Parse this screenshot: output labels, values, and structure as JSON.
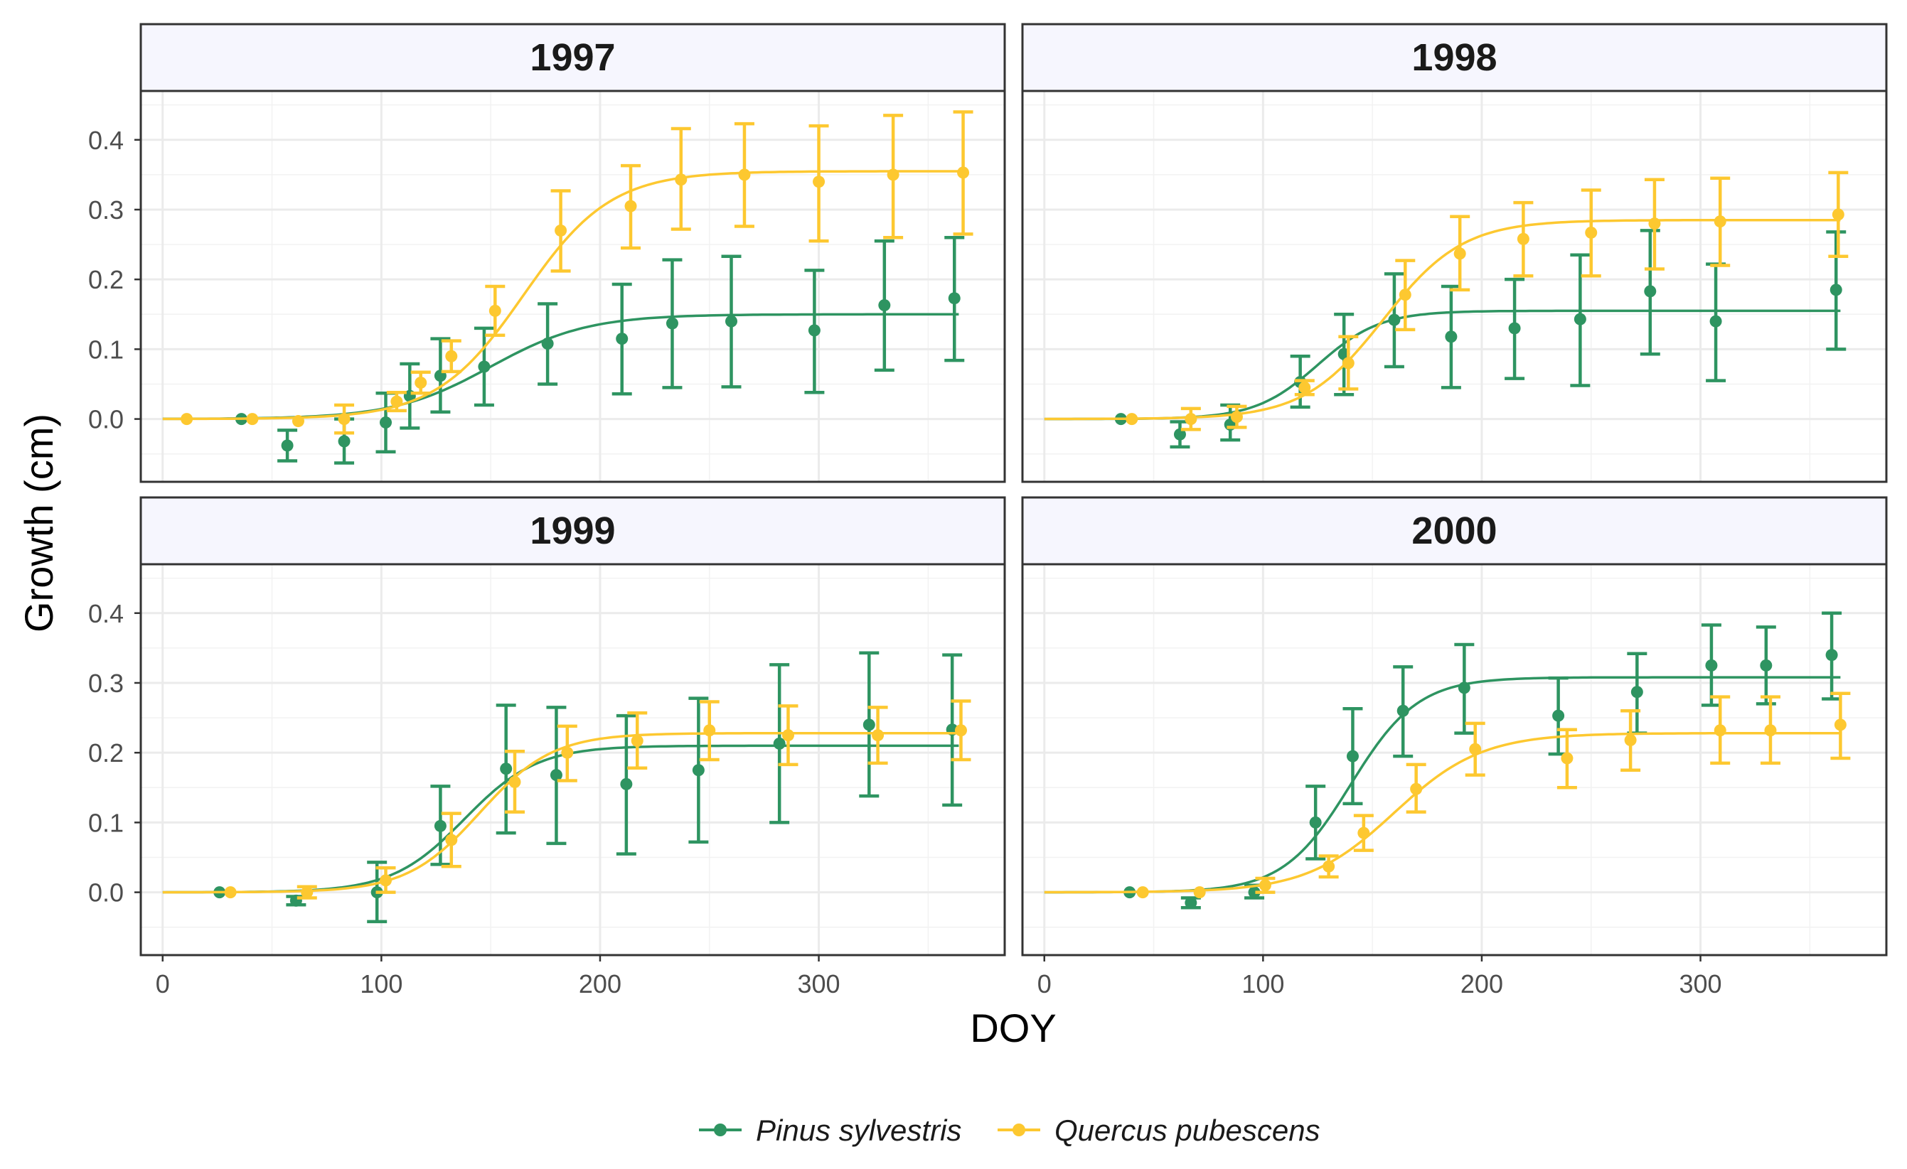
{
  "colors": {
    "pinus": "#2e9461",
    "quercus": "#fdc830"
  },
  "chart_data": {
    "type": "line",
    "xlabel": "DOY",
    "ylabel": "Growth (cm)",
    "xlim": [
      -10,
      385
    ],
    "ylim": [
      -0.09,
      0.47
    ],
    "x_ticks": [
      0,
      100,
      200,
      300
    ],
    "y_ticks": [
      0.0,
      0.1,
      0.2,
      0.3,
      0.4
    ],
    "x_tick_labels": [
      "0",
      "100",
      "200",
      "300"
    ],
    "y_tick_labels": [
      "0.0",
      "0.1",
      "0.2",
      "0.3",
      "0.4"
    ],
    "legend": {
      "position": "bottom",
      "entries": [
        {
          "key": "pinus",
          "label": "Pinus sylvestris"
        },
        {
          "key": "quercus",
          "label": "Quercus pubescens"
        }
      ]
    },
    "panels": [
      {
        "title": "1997",
        "series": [
          {
            "key": "pinus",
            "name": "Pinus sylvestris",
            "curve": {
              "asymptote": 0.15,
              "midpoint": 150,
              "rate": 0.045
            },
            "points": [
              {
                "x": 36,
                "y": 0.0,
                "lo": 0.0,
                "hi": 0.0
              },
              {
                "x": 57,
                "y": -0.038,
                "lo": -0.06,
                "hi": -0.016
              },
              {
                "x": 83,
                "y": -0.032,
                "lo": -0.063,
                "hi": 0.0
              },
              {
                "x": 102,
                "y": -0.005,
                "lo": -0.047,
                "hi": 0.037
              },
              {
                "x": 113,
                "y": 0.033,
                "lo": -0.013,
                "hi": 0.079
              },
              {
                "x": 127,
                "y": 0.062,
                "lo": 0.01,
                "hi": 0.115
              },
              {
                "x": 147,
                "y": 0.075,
                "lo": 0.02,
                "hi": 0.13
              },
              {
                "x": 176,
                "y": 0.108,
                "lo": 0.05,
                "hi": 0.165
              },
              {
                "x": 210,
                "y": 0.115,
                "lo": 0.036,
                "hi": 0.193
              },
              {
                "x": 233,
                "y": 0.137,
                "lo": 0.045,
                "hi": 0.228
              },
              {
                "x": 260,
                "y": 0.14,
                "lo": 0.046,
                "hi": 0.233
              },
              {
                "x": 298,
                "y": 0.127,
                "lo": 0.038,
                "hi": 0.213
              },
              {
                "x": 330,
                "y": 0.163,
                "lo": 0.07,
                "hi": 0.255
              },
              {
                "x": 362,
                "y": 0.173,
                "lo": 0.084,
                "hi": 0.26
              }
            ]
          },
          {
            "key": "quercus",
            "name": "Quercus pubescens",
            "curve": {
              "asymptote": 0.355,
              "midpoint": 165,
              "rate": 0.05
            },
            "points": [
              {
                "x": 11,
                "y": 0.0,
                "lo": 0.0,
                "hi": 0.0
              },
              {
                "x": 41,
                "y": 0.0,
                "lo": 0.0,
                "hi": 0.0
              },
              {
                "x": 62,
                "y": -0.003,
                "lo": -0.003,
                "hi": -0.003
              },
              {
                "x": 83,
                "y": 0.0,
                "lo": -0.02,
                "hi": 0.02
              },
              {
                "x": 107,
                "y": 0.025,
                "lo": 0.012,
                "hi": 0.038
              },
              {
                "x": 118,
                "y": 0.052,
                "lo": 0.037,
                "hi": 0.067
              },
              {
                "x": 132,
                "y": 0.09,
                "lo": 0.068,
                "hi": 0.112
              },
              {
                "x": 152,
                "y": 0.155,
                "lo": 0.12,
                "hi": 0.19
              },
              {
                "x": 182,
                "y": 0.27,
                "lo": 0.212,
                "hi": 0.327
              },
              {
                "x": 214,
                "y": 0.305,
                "lo": 0.245,
                "hi": 0.363
              },
              {
                "x": 237,
                "y": 0.343,
                "lo": 0.272,
                "hi": 0.416
              },
              {
                "x": 266,
                "y": 0.35,
                "lo": 0.276,
                "hi": 0.423
              },
              {
                "x": 300,
                "y": 0.34,
                "lo": 0.255,
                "hi": 0.42
              },
              {
                "x": 334,
                "y": 0.35,
                "lo": 0.26,
                "hi": 0.435
              },
              {
                "x": 366,
                "y": 0.353,
                "lo": 0.265,
                "hi": 0.44
              }
            ]
          }
        ]
      },
      {
        "title": "1998",
        "series": [
          {
            "key": "pinus",
            "name": "Pinus sylvestris",
            "curve": {
              "asymptote": 0.155,
              "midpoint": 125,
              "rate": 0.07
            },
            "points": [
              {
                "x": 35,
                "y": 0.0,
                "lo": 0.0,
                "hi": 0.0
              },
              {
                "x": 62,
                "y": -0.022,
                "lo": -0.04,
                "hi": -0.004
              },
              {
                "x": 85,
                "y": -0.008,
                "lo": -0.03,
                "hi": 0.02
              },
              {
                "x": 117,
                "y": 0.053,
                "lo": 0.017,
                "hi": 0.09
              },
              {
                "x": 137,
                "y": 0.093,
                "lo": 0.035,
                "hi": 0.15
              },
              {
                "x": 160,
                "y": 0.142,
                "lo": 0.075,
                "hi": 0.208
              },
              {
                "x": 186,
                "y": 0.118,
                "lo": 0.045,
                "hi": 0.19
              },
              {
                "x": 215,
                "y": 0.13,
                "lo": 0.058,
                "hi": 0.2
              },
              {
                "x": 245,
                "y": 0.143,
                "lo": 0.048,
                "hi": 0.235
              },
              {
                "x": 277,
                "y": 0.183,
                "lo": 0.093,
                "hi": 0.27
              },
              {
                "x": 307,
                "y": 0.14,
                "lo": 0.055,
                "hi": 0.222
              },
              {
                "x": 362,
                "y": 0.185,
                "lo": 0.1,
                "hi": 0.268
              }
            ]
          },
          {
            "key": "quercus",
            "name": "Quercus pubescens",
            "curve": {
              "asymptote": 0.285,
              "midpoint": 155,
              "rate": 0.055
            },
            "points": [
              {
                "x": 40,
                "y": 0.0,
                "lo": 0.0,
                "hi": 0.0
              },
              {
                "x": 67,
                "y": 0.0,
                "lo": -0.015,
                "hi": 0.015
              },
              {
                "x": 88,
                "y": 0.003,
                "lo": -0.012,
                "hi": 0.018
              },
              {
                "x": 119,
                "y": 0.045,
                "lo": 0.035,
                "hi": 0.055
              },
              {
                "x": 139,
                "y": 0.08,
                "lo": 0.043,
                "hi": 0.118
              },
              {
                "x": 165,
                "y": 0.178,
                "lo": 0.128,
                "hi": 0.227
              },
              {
                "x": 190,
                "y": 0.237,
                "lo": 0.185,
                "hi": 0.29
              },
              {
                "x": 219,
                "y": 0.258,
                "lo": 0.205,
                "hi": 0.31
              },
              {
                "x": 250,
                "y": 0.267,
                "lo": 0.205,
                "hi": 0.328
              },
              {
                "x": 279,
                "y": 0.28,
                "lo": 0.215,
                "hi": 0.343
              },
              {
                "x": 309,
                "y": 0.283,
                "lo": 0.22,
                "hi": 0.345
              },
              {
                "x": 363,
                "y": 0.293,
                "lo": 0.233,
                "hi": 0.353
              }
            ]
          }
        ]
      },
      {
        "title": "1999",
        "series": [
          {
            "key": "pinus",
            "name": "Pinus sylvestris",
            "curve": {
              "asymptote": 0.21,
              "midpoint": 138,
              "rate": 0.06
            },
            "points": [
              {
                "x": 26,
                "y": 0.0,
                "lo": 0.0,
                "hi": 0.0
              },
              {
                "x": 61,
                "y": -0.012,
                "lo": -0.018,
                "hi": -0.006
              },
              {
                "x": 98,
                "y": 0.0,
                "lo": -0.042,
                "hi": 0.043
              },
              {
                "x": 127,
                "y": 0.095,
                "lo": 0.04,
                "hi": 0.152
              },
              {
                "x": 157,
                "y": 0.177,
                "lo": 0.085,
                "hi": 0.268
              },
              {
                "x": 180,
                "y": 0.168,
                "lo": 0.07,
                "hi": 0.265
              },
              {
                "x": 212,
                "y": 0.155,
                "lo": 0.055,
                "hi": 0.253
              },
              {
                "x": 245,
                "y": 0.175,
                "lo": 0.072,
                "hi": 0.278
              },
              {
                "x": 282,
                "y": 0.213,
                "lo": 0.1,
                "hi": 0.326
              },
              {
                "x": 323,
                "y": 0.24,
                "lo": 0.138,
                "hi": 0.343
              },
              {
                "x": 361,
                "y": 0.233,
                "lo": 0.125,
                "hi": 0.34
              }
            ]
          },
          {
            "key": "quercus",
            "name": "Quercus pubescens",
            "curve": {
              "asymptote": 0.228,
              "midpoint": 145,
              "rate": 0.06
            },
            "points": [
              {
                "x": 31,
                "y": 0.0,
                "lo": 0.0,
                "hi": 0.0
              },
              {
                "x": 66,
                "y": 0.0,
                "lo": -0.008,
                "hi": 0.008
              },
              {
                "x": 102,
                "y": 0.017,
                "lo": 0.0,
                "hi": 0.035
              },
              {
                "x": 132,
                "y": 0.075,
                "lo": 0.037,
                "hi": 0.113
              },
              {
                "x": 161,
                "y": 0.158,
                "lo": 0.115,
                "hi": 0.202
              },
              {
                "x": 185,
                "y": 0.2,
                "lo": 0.16,
                "hi": 0.238
              },
              {
                "x": 217,
                "y": 0.217,
                "lo": 0.178,
                "hi": 0.257
              },
              {
                "x": 250,
                "y": 0.232,
                "lo": 0.19,
                "hi": 0.273
              },
              {
                "x": 286,
                "y": 0.225,
                "lo": 0.183,
                "hi": 0.267
              },
              {
                "x": 327,
                "y": 0.225,
                "lo": 0.185,
                "hi": 0.265
              },
              {
                "x": 365,
                "y": 0.232,
                "lo": 0.19,
                "hi": 0.274
              }
            ]
          }
        ]
      },
      {
        "title": "2000",
        "series": [
          {
            "key": "pinus",
            "name": "Pinus sylvestris",
            "curve": {
              "asymptote": 0.308,
              "midpoint": 140,
              "rate": 0.065
            },
            "points": [
              {
                "x": 39,
                "y": 0.0,
                "lo": 0.0,
                "hi": 0.0
              },
              {
                "x": 67,
                "y": -0.015,
                "lo": -0.022,
                "hi": -0.008
              },
              {
                "x": 96,
                "y": 0.0,
                "lo": -0.008,
                "hi": 0.01
              },
              {
                "x": 124,
                "y": 0.1,
                "lo": 0.048,
                "hi": 0.152
              },
              {
                "x": 141,
                "y": 0.195,
                "lo": 0.127,
                "hi": 0.263
              },
              {
                "x": 164,
                "y": 0.26,
                "lo": 0.195,
                "hi": 0.323
              },
              {
                "x": 192,
                "y": 0.293,
                "lo": 0.228,
                "hi": 0.355
              },
              {
                "x": 235,
                "y": 0.253,
                "lo": 0.198,
                "hi": 0.307
              },
              {
                "x": 271,
                "y": 0.287,
                "lo": 0.228,
                "hi": 0.342
              },
              {
                "x": 305,
                "y": 0.325,
                "lo": 0.268,
                "hi": 0.383
              },
              {
                "x": 330,
                "y": 0.325,
                "lo": 0.27,
                "hi": 0.38
              },
              {
                "x": 360,
                "y": 0.34,
                "lo": 0.277,
                "hi": 0.4
              }
            ]
          },
          {
            "key": "quercus",
            "name": "Quercus pubescens",
            "curve": {
              "asymptote": 0.228,
              "midpoint": 160,
              "rate": 0.05
            },
            "points": [
              {
                "x": 45,
                "y": 0.0,
                "lo": 0.0,
                "hi": 0.0
              },
              {
                "x": 71,
                "y": 0.0,
                "lo": 0.0,
                "hi": 0.0
              },
              {
                "x": 101,
                "y": 0.01,
                "lo": 0.0,
                "hi": 0.02
              },
              {
                "x": 130,
                "y": 0.037,
                "lo": 0.022,
                "hi": 0.052
              },
              {
                "x": 146,
                "y": 0.085,
                "lo": 0.06,
                "hi": 0.11
              },
              {
                "x": 170,
                "y": 0.148,
                "lo": 0.115,
                "hi": 0.183
              },
              {
                "x": 197,
                "y": 0.205,
                "lo": 0.168,
                "hi": 0.242
              },
              {
                "x": 239,
                "y": 0.192,
                "lo": 0.15,
                "hi": 0.233
              },
              {
                "x": 268,
                "y": 0.218,
                "lo": 0.175,
                "hi": 0.26
              },
              {
                "x": 309,
                "y": 0.232,
                "lo": 0.185,
                "hi": 0.28
              },
              {
                "x": 332,
                "y": 0.232,
                "lo": 0.185,
                "hi": 0.28
              },
              {
                "x": 364,
                "y": 0.24,
                "lo": 0.192,
                "hi": 0.285
              }
            ]
          }
        ]
      }
    ]
  }
}
